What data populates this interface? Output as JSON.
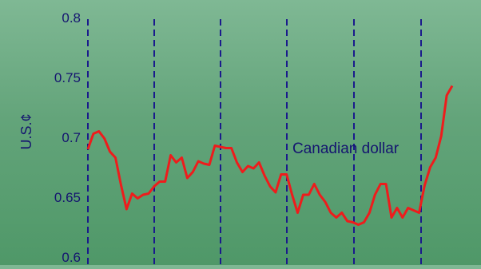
{
  "chart_data": {
    "type": "line",
    "title": "",
    "ylabel": "U.S.¢",
    "xlabel": "",
    "ylim": [
      0.6,
      0.8
    ],
    "yticks": [
      "0.6",
      "0.65",
      "0.7",
      "0.75",
      "0.8"
    ],
    "annotation": "Canadian dollar",
    "grid": "vertical dashed lines",
    "series": [
      {
        "values": [
          0.69,
          0.703,
          0.705,
          0.699,
          0.688,
          0.683,
          0.66,
          0.64,
          0.653,
          0.649,
          0.652,
          0.653,
          0.659,
          0.663,
          0.663,
          0.685,
          0.679,
          0.683,
          0.666,
          0.671,
          0.68,
          0.678,
          0.677,
          0.693,
          0.692,
          0.691,
          0.691,
          0.679,
          0.671,
          0.676,
          0.674,
          0.679,
          0.668,
          0.659,
          0.654,
          0.669,
          0.669,
          0.652,
          0.637,
          0.652,
          0.652,
          0.661,
          0.652,
          0.646,
          0.637,
          0.633,
          0.637,
          0.63,
          0.629,
          0.627,
          0.629,
          0.637,
          0.652,
          0.661,
          0.661,
          0.633,
          0.641,
          0.633,
          0.641,
          0.639,
          0.637,
          0.66,
          0.675,
          0.683,
          0.701,
          0.735,
          0.743
        ]
      }
    ],
    "colors": {
      "line": "#ee1c1c",
      "gridline": "#1a1a8c",
      "text": "#151570"
    }
  }
}
